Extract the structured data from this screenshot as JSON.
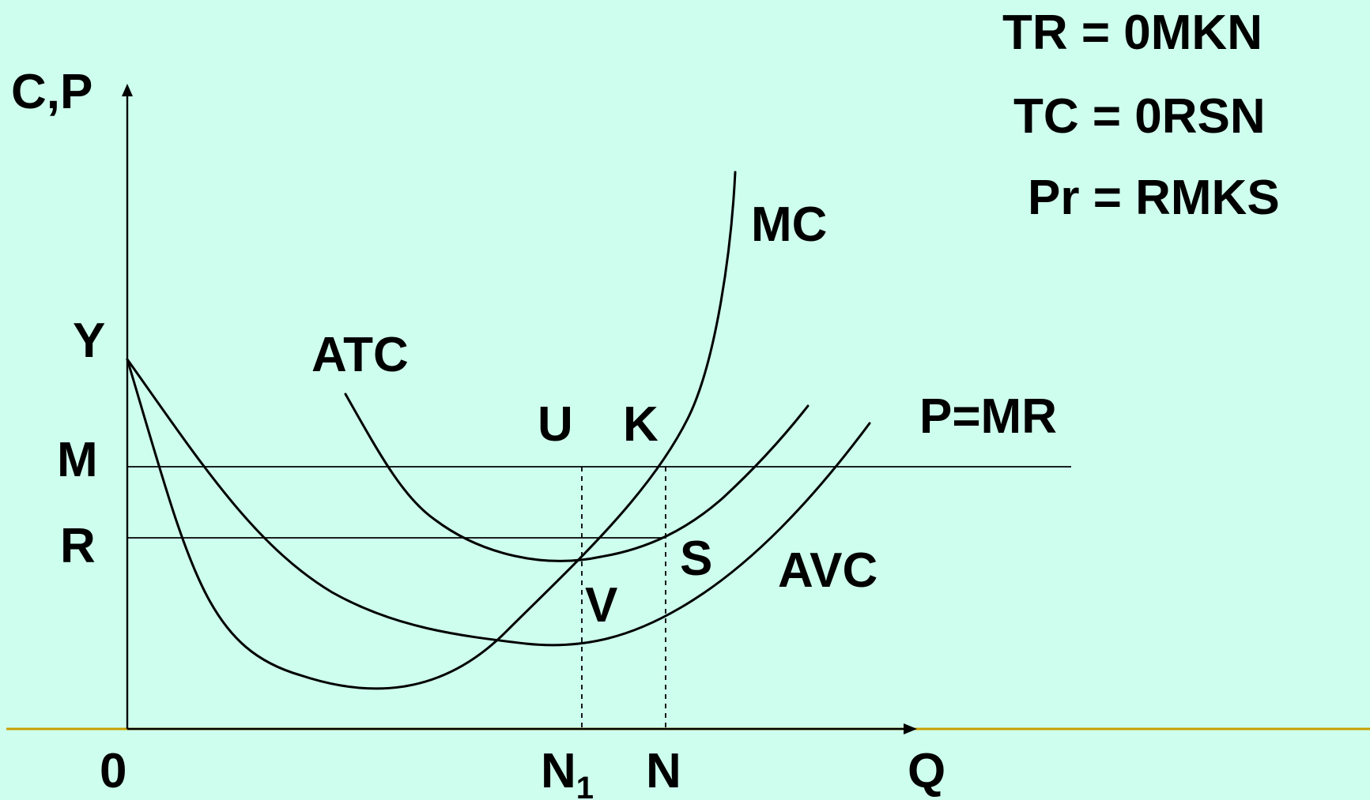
{
  "colors": {
    "background": "#ceffee",
    "ink": "#000000",
    "baseline": "#c8a000"
  },
  "equations": {
    "tr": "TR = 0MKN",
    "tc": "TC = 0RSN",
    "pr": "Pr = RMKS"
  },
  "axes": {
    "y_label": "C,P",
    "x_label": "Q",
    "origin": "0"
  },
  "y_ticks": {
    "y": "Y",
    "m": "M",
    "r": "R"
  },
  "x_ticks": {
    "n1_base": "N",
    "n1_sub": "1",
    "n": "N"
  },
  "curves": {
    "mc": "MC",
    "atc": "ATC",
    "avc": "AVC",
    "p_mr": "P=MR"
  },
  "points": {
    "u": "U",
    "k": "K",
    "s": "S",
    "v": "V"
  }
}
